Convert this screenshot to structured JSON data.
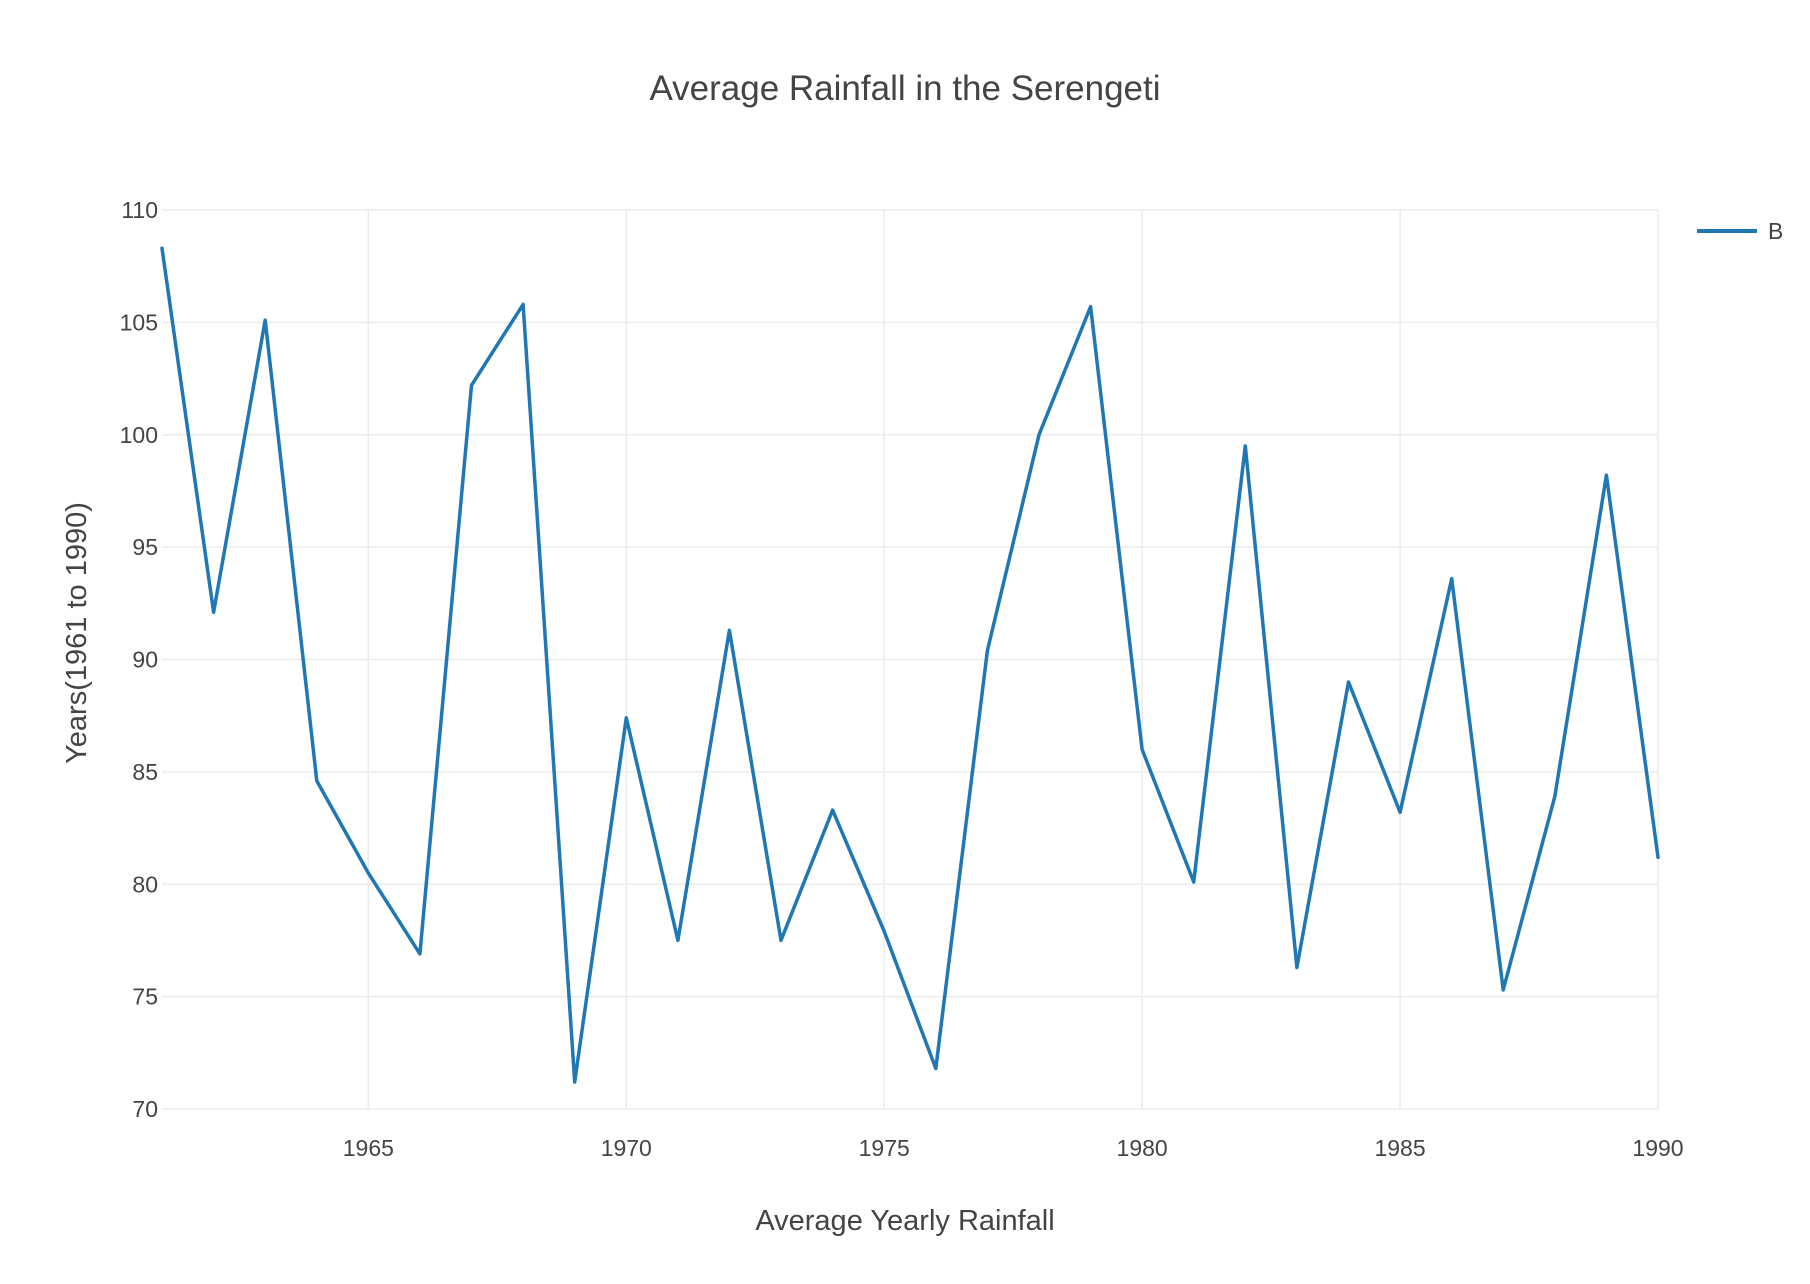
{
  "chart_data": {
    "type": "line",
    "title": "Average Rainfall in the Serengeti",
    "xlabel": "Average Yearly Rainfall",
    "ylabel": "Years(1961 to 1990)",
    "xlim": [
      1961,
      1990
    ],
    "ylim": [
      70,
      110
    ],
    "x_ticks": [
      1965,
      1970,
      1975,
      1980,
      1985,
      1990
    ],
    "y_ticks": [
      70,
      75,
      80,
      85,
      90,
      95,
      100,
      105,
      110
    ],
    "grid": true,
    "legend_position": "top-right",
    "series": [
      {
        "name": "B",
        "color": "#1f77b4",
        "x": [
          1961,
          1962,
          1963,
          1964,
          1965,
          1966,
          1967,
          1968,
          1969,
          1970,
          1971,
          1972,
          1973,
          1974,
          1975,
          1976,
          1977,
          1978,
          1979,
          1980,
          1981,
          1982,
          1983,
          1984,
          1985,
          1986,
          1987,
          1988,
          1989,
          1990
        ],
        "y": [
          108.3,
          92.1,
          105.1,
          84.6,
          80.5,
          76.9,
          102.2,
          105.8,
          71.2,
          87.4,
          77.5,
          91.3,
          77.5,
          83.3,
          77.9,
          71.8,
          90.4,
          100.0,
          105.7,
          86.0,
          80.1,
          99.5,
          76.3,
          89.0,
          83.2,
          93.6,
          75.3,
          83.9,
          98.2,
          81.2
        ]
      }
    ]
  }
}
